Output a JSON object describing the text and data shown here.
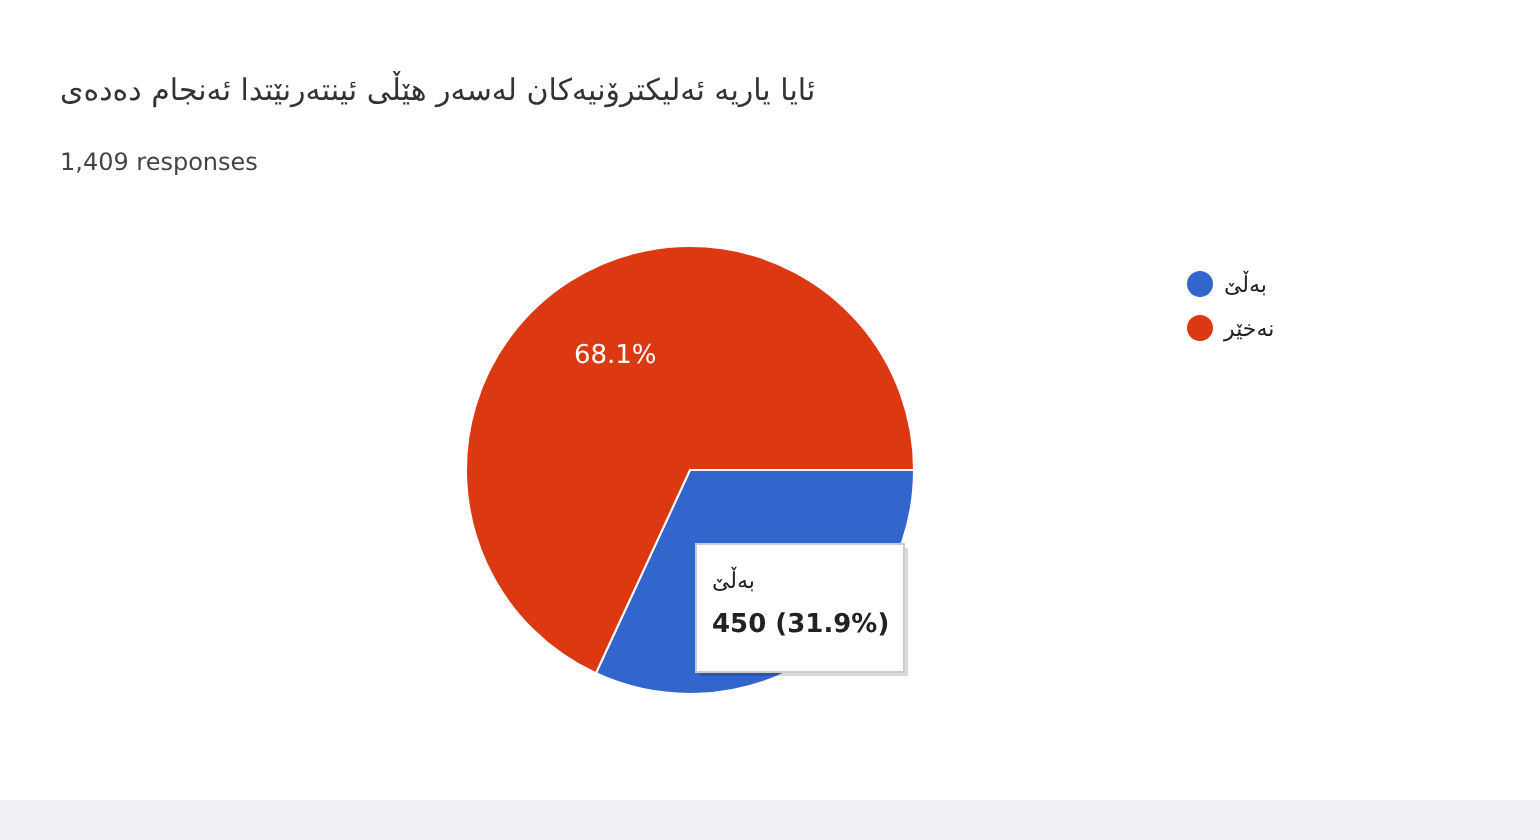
{
  "chart_data": {
    "type": "pie",
    "title": "ئایا یاریە ئەلیکترۆنیەکان لەسەر هێڵی ئینتەرنێتدا ئەنجام دەدەی",
    "subtitle": "1,409 responses",
    "categories": [
      "بەڵێ",
      "نەخێر"
    ],
    "values": [
      31.9,
      68.1
    ],
    "colors": [
      "#3366cc",
      "#dc3912"
    ],
    "value_labels": [
      null,
      "68.1%"
    ],
    "legend": "top right",
    "annotations": [
      "بەڵێ",
      "450 (31.9%)"
    ]
  }
}
